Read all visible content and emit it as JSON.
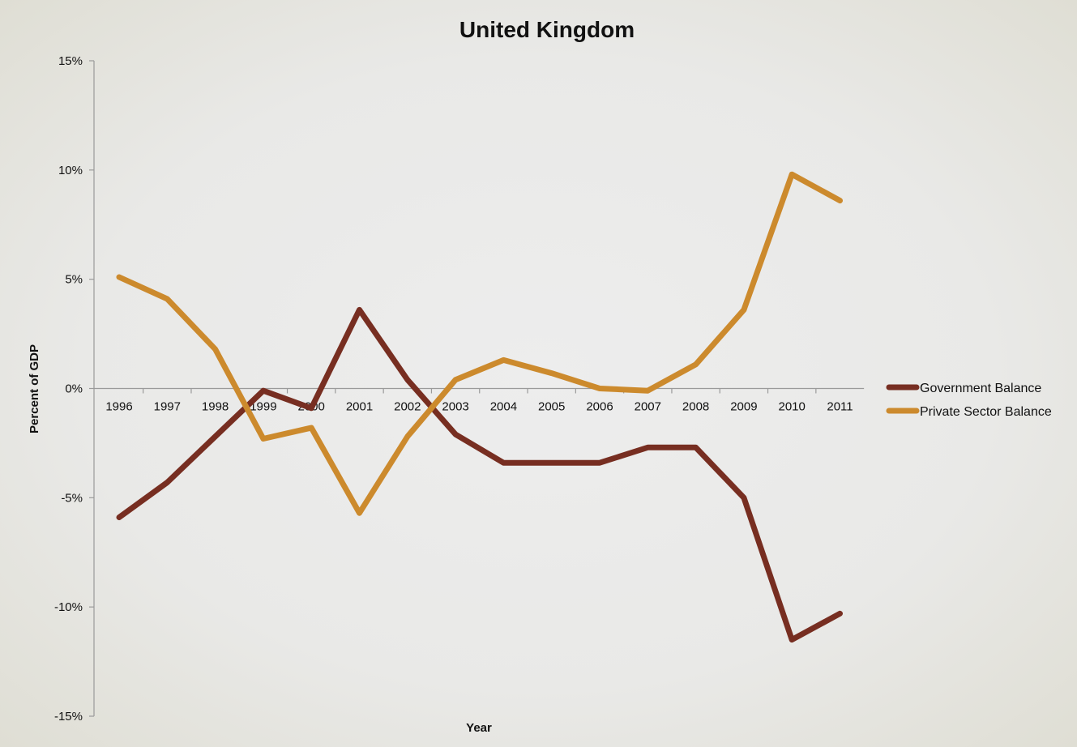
{
  "chart_data": {
    "type": "line",
    "title": "United Kingdom",
    "xlabel": "Year",
    "ylabel": "Percent of GDP",
    "x": [
      "1996",
      "1997",
      "1998",
      "1999",
      "2000",
      "2001",
      "2002",
      "2003",
      "2004",
      "2005",
      "2006",
      "2007",
      "2008",
      "2009",
      "2010",
      "2011"
    ],
    "ylim": [
      -15,
      15
    ],
    "yticks": [
      15,
      10,
      5,
      0,
      -5,
      -10,
      -15
    ],
    "ytick_labels": [
      "15%",
      "10%",
      "5%",
      "0%",
      "-5%",
      "-10%",
      "-15%"
    ],
    "grid": false,
    "legend_position": "right",
    "series": [
      {
        "name": "Government Balance",
        "color": "#772e21",
        "values": [
          -5.9,
          -4.3,
          -2.2,
          -0.1,
          -0.9,
          3.6,
          0.4,
          -2.1,
          -3.4,
          -3.4,
          -3.4,
          -2.7,
          -2.7,
          -5.0,
          -11.5,
          -10.3
        ]
      },
      {
        "name": "Private Sector Balance",
        "color": "#cc8a2d",
        "values": [
          5.1,
          4.1,
          1.8,
          -2.3,
          -1.8,
          -5.7,
          -2.2,
          0.4,
          1.3,
          0.7,
          0.0,
          -0.1,
          1.1,
          3.6,
          9.8,
          8.6
        ]
      }
    ]
  }
}
